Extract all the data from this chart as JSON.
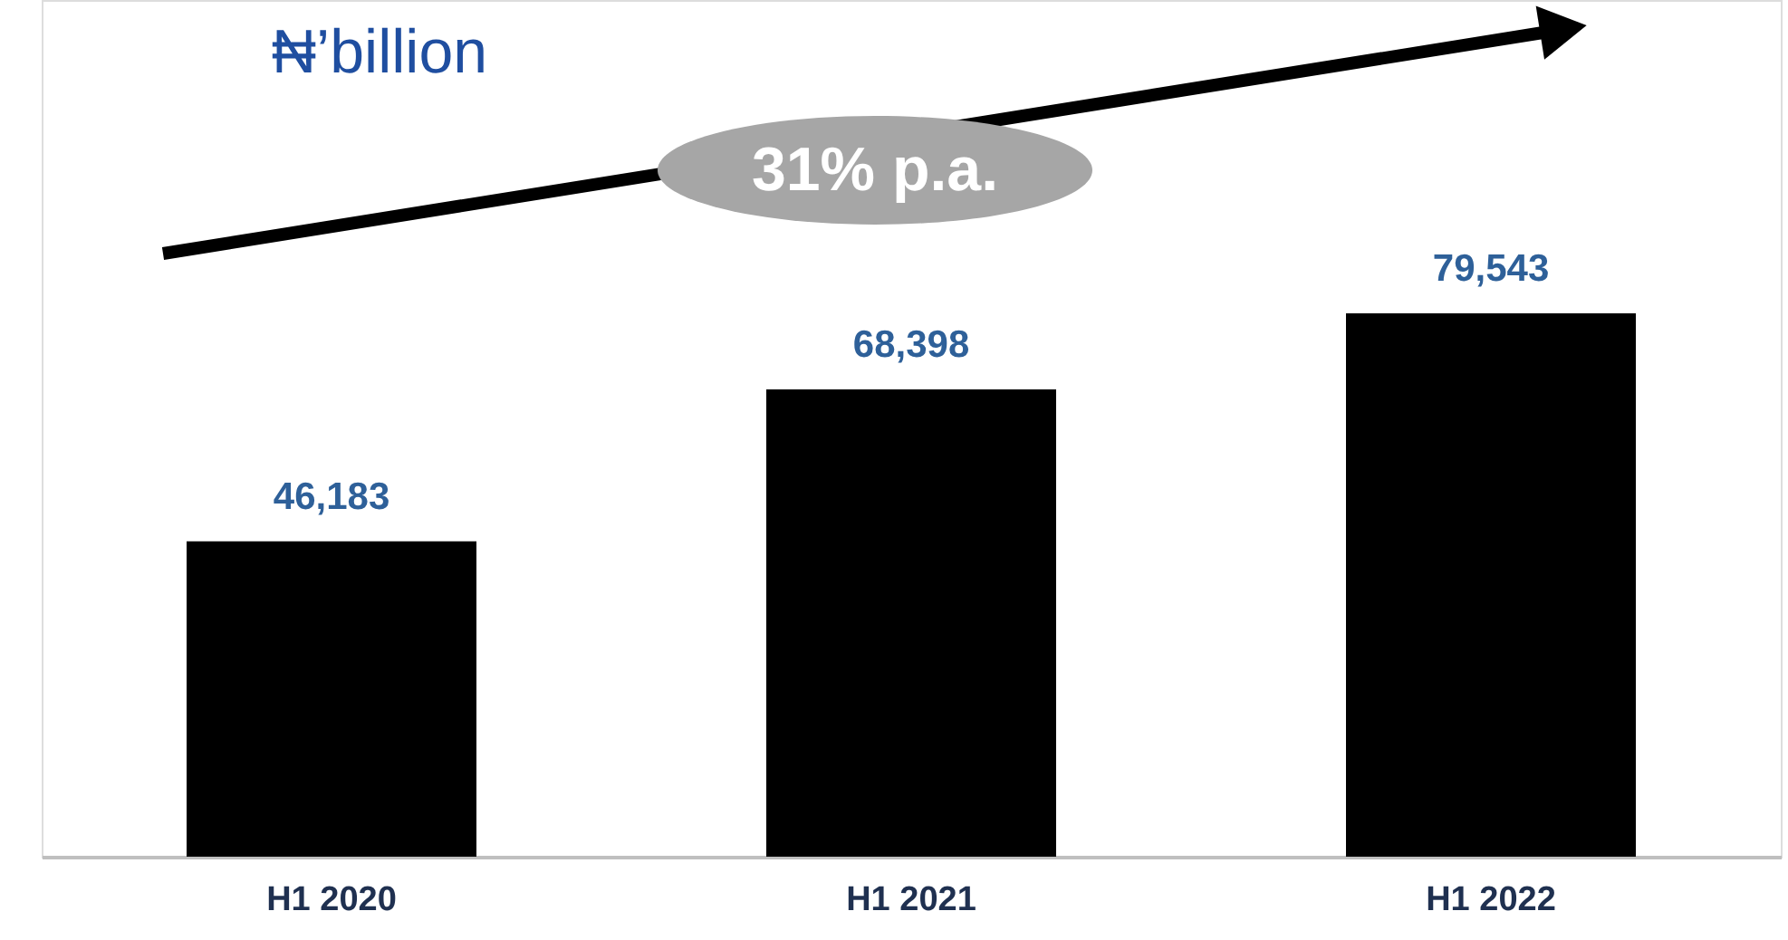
{
  "chart_data": {
    "type": "bar",
    "title": "₦’billion",
    "categories": [
      "H1 2020",
      "H1 2021",
      "H1 2022"
    ],
    "values": [
      46183,
      68398,
      79543
    ],
    "color": "#000000",
    "value_labels": [
      "46,183",
      "68,398",
      "79,543"
    ],
    "tick_labels": "x",
    "annotations": [
      "31% p.a."
    ]
  }
}
